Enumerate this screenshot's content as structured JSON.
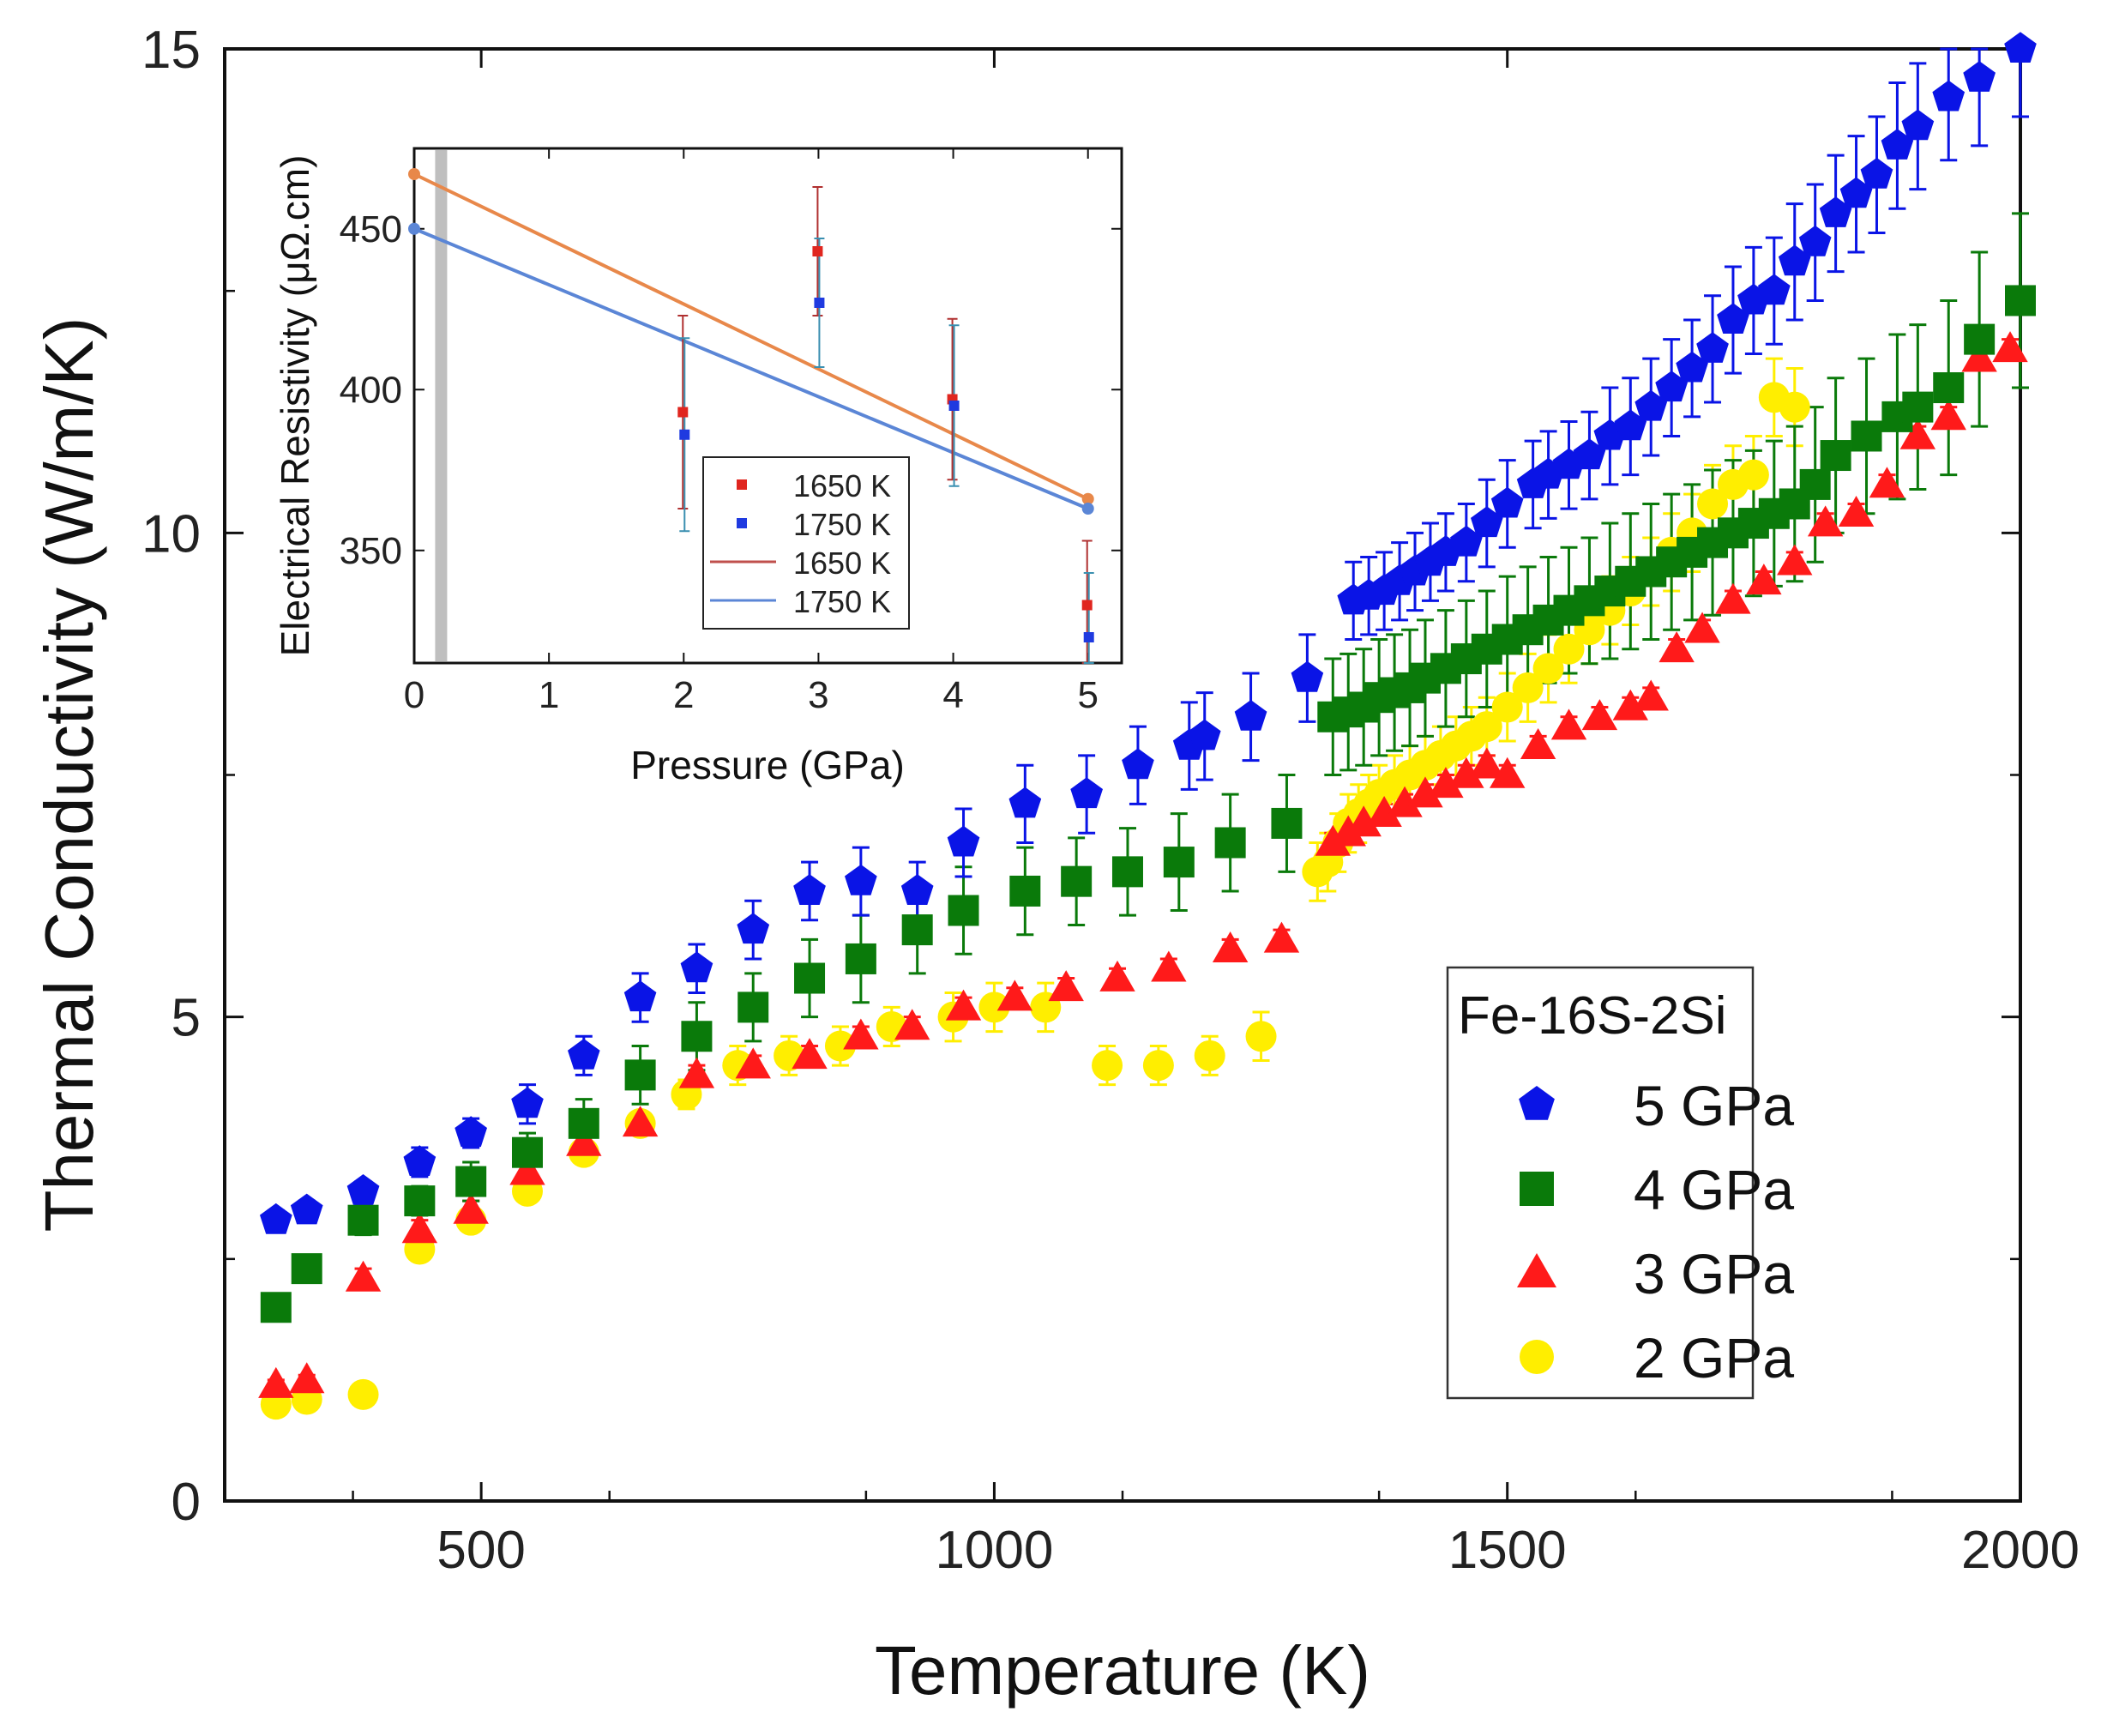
{
  "chart_data": [
    {
      "type": "scatter",
      "title": "",
      "xlabel": "Temperature (K)",
      "ylabel": "Thermal Conductivity (W/m/K)",
      "xlim": [
        250,
        2000
      ],
      "ylim": [
        0,
        15
      ],
      "x_ticks": [
        500,
        1000,
        1500,
        2000
      ],
      "y_ticks": [
        0,
        5,
        10,
        15
      ],
      "grid": false,
      "legend": {
        "title": "Fe-16S-2Si",
        "placement": "bottom-right"
      },
      "series": [
        {
          "name": "5 GPa",
          "marker": "pentagon",
          "color": "#0a14e6",
          "x": [
            300,
            330,
            385,
            440,
            490,
            545,
            600,
            655,
            710,
            765,
            820,
            870,
            925,
            970,
            1030,
            1090,
            1140,
            1190,
            1205,
            1250,
            1305,
            1350,
            1365,
            1380,
            1395,
            1410,
            1425,
            1440,
            1460,
            1480,
            1500,
            1525,
            1540,
            1560,
            1580,
            1600,
            1620,
            1640,
            1660,
            1680,
            1700,
            1720,
            1740,
            1760,
            1780,
            1800,
            1820,
            1840,
            1860,
            1880,
            1900,
            1930,
            1960,
            2000
          ],
          "y": [
            2.9,
            3.0,
            3.2,
            3.5,
            3.8,
            4.1,
            4.6,
            5.2,
            5.5,
            5.9,
            6.3,
            6.4,
            6.3,
            6.8,
            7.2,
            7.3,
            7.6,
            7.8,
            7.9,
            8.1,
            8.5,
            9.3,
            9.35,
            9.4,
            9.5,
            9.6,
            9.7,
            9.8,
            9.9,
            10.1,
            10.3,
            10.5,
            10.6,
            10.7,
            10.8,
            11.0,
            11.1,
            11.3,
            11.5,
            11.7,
            11.9,
            12.2,
            12.4,
            12.5,
            12.8,
            13.0,
            13.3,
            13.5,
            13.7,
            14.0,
            14.2,
            14.5,
            14.7,
            15.0
          ],
          "y_err": [
            0.1,
            0.1,
            0.1,
            0.15,
            0.15,
            0.2,
            0.2,
            0.25,
            0.25,
            0.3,
            0.3,
            0.35,
            0.3,
            0.35,
            0.4,
            0.4,
            0.4,
            0.45,
            0.45,
            0.45,
            0.45,
            0.4,
            0.4,
            0.4,
            0.4,
            0.4,
            0.4,
            0.4,
            0.4,
            0.45,
            0.45,
            0.45,
            0.45,
            0.45,
            0.45,
            0.5,
            0.5,
            0.5,
            0.5,
            0.5,
            0.55,
            0.55,
            0.55,
            0.55,
            0.6,
            0.6,
            0.6,
            0.6,
            0.6,
            0.65,
            0.65,
            0.65,
            0.7,
            0.7
          ]
        },
        {
          "name": "4 GPa",
          "marker": "square",
          "color": "#0a7a0a",
          "x": [
            300,
            330,
            385,
            440,
            490,
            545,
            600,
            655,
            710,
            765,
            820,
            870,
            925,
            970,
            1030,
            1080,
            1130,
            1180,
            1230,
            1285,
            1330,
            1345,
            1360,
            1375,
            1390,
            1405,
            1420,
            1440,
            1460,
            1480,
            1500,
            1520,
            1540,
            1560,
            1580,
            1600,
            1620,
            1640,
            1660,
            1680,
            1700,
            1720,
            1740,
            1760,
            1780,
            1800,
            1820,
            1850,
            1880,
            1900,
            1930,
            1960,
            2000
          ],
          "y": [
            2.0,
            2.4,
            2.9,
            3.1,
            3.3,
            3.6,
            3.9,
            4.4,
            4.8,
            5.1,
            5.4,
            5.6,
            5.9,
            6.1,
            6.3,
            6.4,
            6.5,
            6.6,
            6.8,
            7.0,
            8.1,
            8.15,
            8.2,
            8.3,
            8.35,
            8.4,
            8.5,
            8.6,
            8.7,
            8.8,
            8.9,
            9.0,
            9.1,
            9.2,
            9.3,
            9.4,
            9.5,
            9.6,
            9.7,
            9.8,
            9.9,
            10.0,
            10.1,
            10.2,
            10.3,
            10.5,
            10.8,
            11.0,
            11.2,
            11.3,
            11.5,
            12.0,
            12.4
          ],
          "y_err": [
            0.1,
            0.1,
            0.15,
            0.15,
            0.2,
            0.2,
            0.25,
            0.3,
            0.35,
            0.35,
            0.4,
            0.45,
            0.45,
            0.45,
            0.45,
            0.45,
            0.45,
            0.5,
            0.5,
            0.5,
            0.6,
            0.6,
            0.6,
            0.6,
            0.6,
            0.6,
            0.6,
            0.6,
            0.6,
            0.6,
            0.65,
            0.65,
            0.65,
            0.65,
            0.65,
            0.7,
            0.7,
            0.7,
            0.7,
            0.7,
            0.75,
            0.75,
            0.75,
            0.75,
            0.8,
            0.8,
            0.8,
            0.8,
            0.85,
            0.85,
            0.9,
            0.9,
            0.9
          ]
        },
        {
          "name": "3 GPa",
          "marker": "triangle",
          "color": "#ff1a1a",
          "x": [
            300,
            330,
            385,
            440,
            490,
            545,
            600,
            655,
            710,
            765,
            820,
            870,
            920,
            970,
            1020,
            1070,
            1120,
            1170,
            1230,
            1280,
            1330,
            1345,
            1360,
            1380,
            1400,
            1420,
            1440,
            1460,
            1480,
            1500,
            1530,
            1560,
            1590,
            1620,
            1640,
            1665,
            1690,
            1720,
            1750,
            1780,
            1810,
            1840,
            1870,
            1900,
            1930,
            1960,
            1990
          ],
          "y": [
            1.2,
            1.25,
            2.3,
            2.8,
            3.0,
            3.4,
            3.7,
            3.9,
            4.4,
            4.5,
            4.6,
            4.8,
            4.9,
            5.1,
            5.2,
            5.3,
            5.4,
            5.5,
            5.7,
            5.8,
            6.8,
            6.9,
            7.0,
            7.1,
            7.2,
            7.3,
            7.4,
            7.5,
            7.6,
            7.5,
            7.8,
            8.0,
            8.1,
            8.2,
            8.3,
            8.8,
            9.0,
            9.3,
            9.5,
            9.7,
            10.1,
            10.2,
            10.5,
            11.0,
            11.2,
            11.8,
            11.9
          ],
          "y_err": [
            0.05,
            0.05,
            0.1,
            0.1,
            0.1,
            0.1,
            0.1,
            0.1,
            0.1,
            0.1,
            0.1,
            0.1,
            0.1,
            0.1,
            0.1,
            0.1,
            0.1,
            0.1,
            0.1,
            0.1,
            0.1,
            0.1,
            0.1,
            0.1,
            0.1,
            0.1,
            0.1,
            0.1,
            0.1,
            0.1,
            0.1,
            0.1,
            0.1,
            0.1,
            0.1,
            0.1,
            0.1,
            0.1,
            0.1,
            0.1,
            0.1,
            0.1,
            0.1,
            0.1,
            0.1,
            0.1,
            0.1
          ]
        },
        {
          "name": "2 GPa",
          "marker": "circle",
          "color": "#ffee00",
          "x": [
            300,
            330,
            385,
            440,
            490,
            545,
            600,
            655,
            700,
            750,
            800,
            850,
            900,
            960,
            1000,
            1050,
            1110,
            1160,
            1210,
            1260,
            1315,
            1325,
            1335,
            1345,
            1355,
            1365,
            1375,
            1390,
            1405,
            1420,
            1435,
            1450,
            1465,
            1480,
            1500,
            1520,
            1540,
            1560,
            1580,
            1600,
            1620,
            1640,
            1660,
            1680,
            1700,
            1720,
            1740,
            1760,
            1780
          ],
          "y": [
            1.0,
            1.05,
            1.1,
            2.6,
            2.9,
            3.2,
            3.6,
            3.9,
            4.2,
            4.5,
            4.6,
            4.7,
            4.9,
            5.0,
            5.1,
            5.1,
            4.5,
            4.5,
            4.6,
            4.8,
            6.5,
            6.6,
            6.8,
            7.0,
            7.1,
            7.2,
            7.3,
            7.4,
            7.5,
            7.6,
            7.7,
            7.8,
            7.9,
            8.0,
            8.2,
            8.4,
            8.6,
            8.8,
            9.0,
            9.2,
            9.4,
            9.6,
            9.8,
            10.0,
            10.3,
            10.5,
            10.6,
            11.4,
            11.3
          ],
          "y_err": [
            0.05,
            0.05,
            0.05,
            0.1,
            0.1,
            0.1,
            0.1,
            0.1,
            0.15,
            0.2,
            0.2,
            0.2,
            0.2,
            0.25,
            0.25,
            0.25,
            0.2,
            0.2,
            0.2,
            0.25,
            0.3,
            0.3,
            0.3,
            0.3,
            0.3,
            0.3,
            0.3,
            0.3,
            0.3,
            0.3,
            0.3,
            0.3,
            0.3,
            0.3,
            0.35,
            0.35,
            0.35,
            0.35,
            0.35,
            0.35,
            0.35,
            0.35,
            0.4,
            0.4,
            0.4,
            0.4,
            0.4,
            0.4,
            0.4
          ]
        }
      ]
    },
    {
      "type": "scatter",
      "title": "",
      "xlabel": "Pressure (GPa)",
      "ylabel": "Electrical Resistivity (μΩ.cm)",
      "xlim": [
        0,
        5.25
      ],
      "ylim": [
        315,
        475
      ],
      "x_ticks": [
        0,
        1,
        2,
        3,
        4,
        5
      ],
      "y_ticks": [
        350,
        400,
        450
      ],
      "grid": false,
      "legend": {
        "placement": "bottom-center"
      },
      "highlight_band_x": 0.2,
      "series": [
        {
          "name": "1650 K",
          "marker": "square",
          "color": "#e0261f",
          "x": [
            2,
            3,
            4,
            5
          ],
          "y": [
            393,
            443,
            397,
            333
          ],
          "y_err": [
            30,
            20,
            25,
            20
          ]
        },
        {
          "name": "1750 K",
          "marker": "square",
          "color": "#1f3ae0",
          "x": [
            2,
            3,
            4,
            5
          ],
          "y": [
            386,
            427,
            395,
            323
          ],
          "y_err": [
            30,
            20,
            25,
            20
          ]
        }
      ],
      "fits": [
        {
          "name": "1650 K",
          "color": "#e8884a",
          "x": [
            0,
            5
          ],
          "y": [
            467,
            366
          ]
        },
        {
          "name": "1750 K",
          "color": "#5b86d6",
          "x": [
            0,
            5
          ],
          "y": [
            450,
            363
          ]
        }
      ]
    }
  ]
}
